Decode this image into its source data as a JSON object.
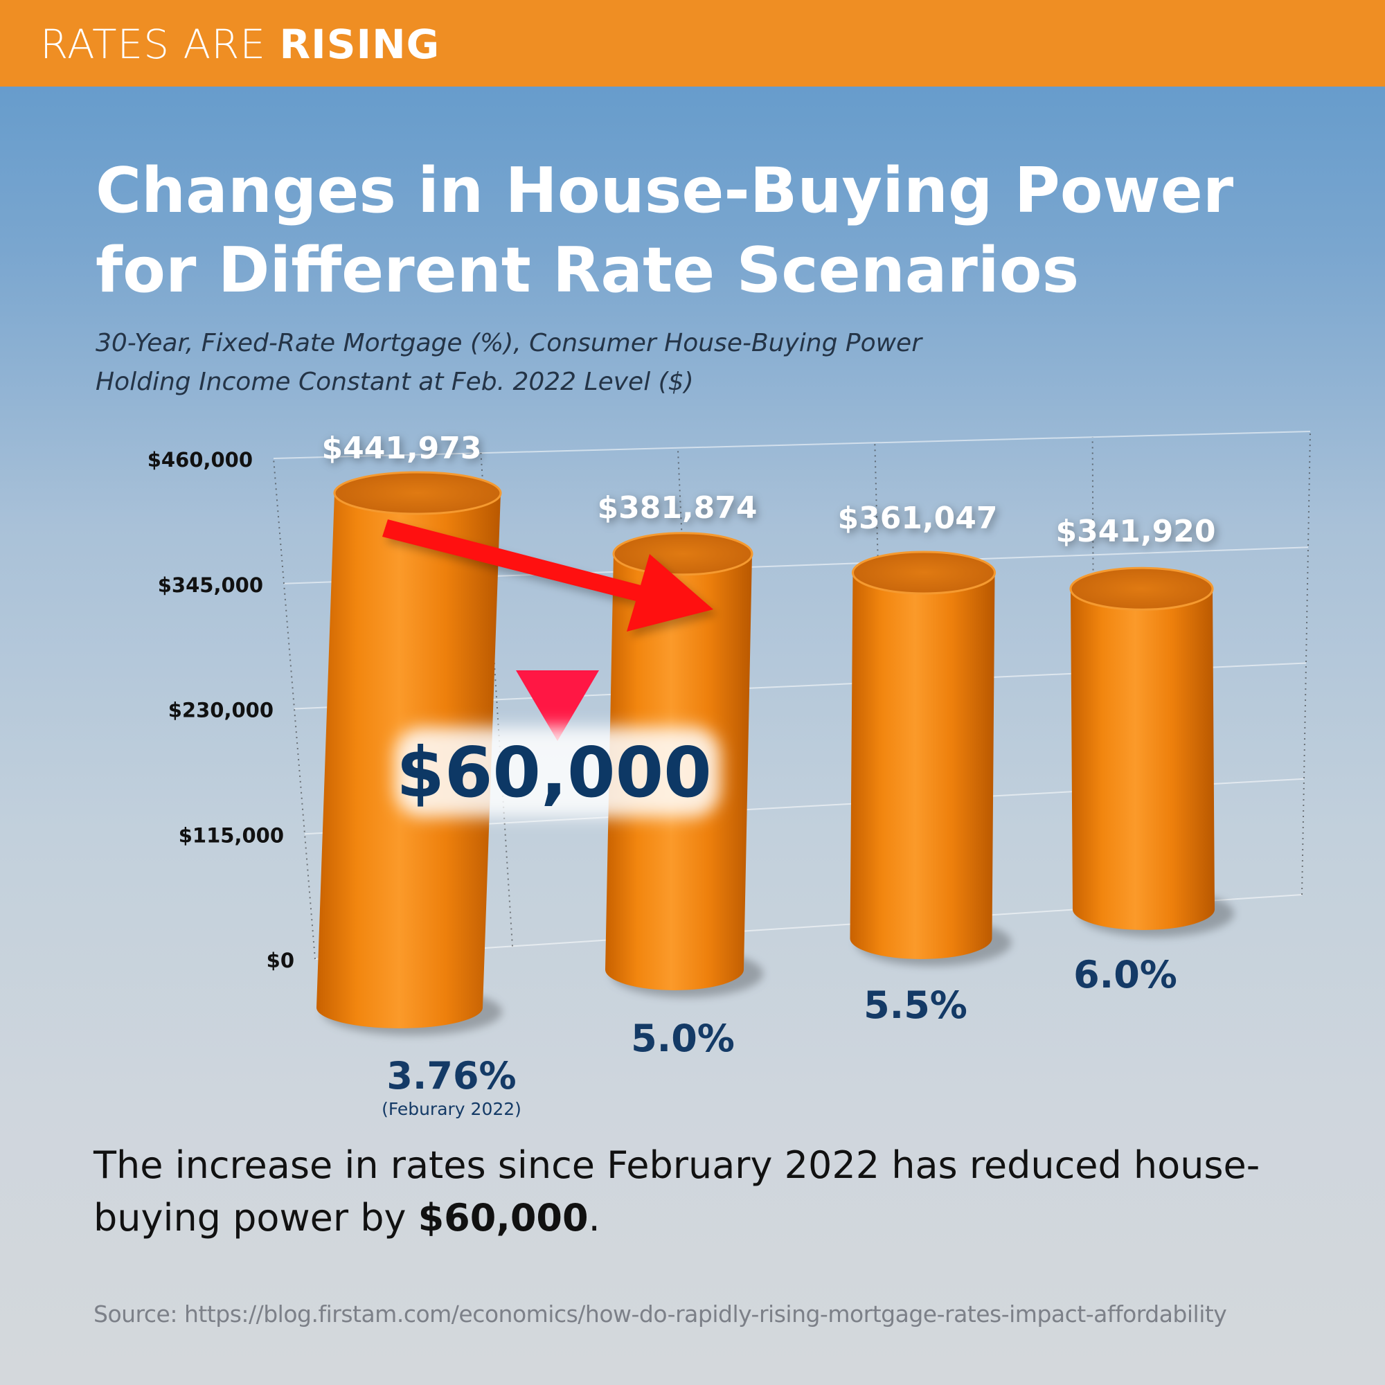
{
  "banner": {
    "prefix": "RATES ARE ",
    "emphasis": "RISING"
  },
  "title": "Changes in House-Buying Power for Different Rate Scenarios",
  "subtitle": {
    "line1": "30-Year, Fixed-Rate Mortgage (%), Consumer House-Buying Power",
    "line2": "Holding Income Constant at Feb. 2022 Level ($)"
  },
  "chart_data": {
    "type": "bar",
    "title": "Changes in House-Buying Power for Different Rate Scenarios",
    "xlabel": "30-Year, Fixed-Rate Mortgage (%)",
    "ylabel": "Consumer House-Buying Power ($)",
    "categories": [
      "3.76%",
      "5.0%",
      "5.5%",
      "6.0%"
    ],
    "category_notes": [
      "(Feburary 2022)",
      "",
      "",
      ""
    ],
    "values": [
      441973,
      381874,
      361047,
      341920
    ],
    "value_labels": [
      "$441,973",
      "$381,874",
      "$361,047",
      "$341,920"
    ],
    "yticks": [
      0,
      115000,
      230000,
      345000,
      460000
    ],
    "ytick_labels": [
      "$0",
      "$115,000",
      "$230,000",
      "$345,000",
      "$460,000"
    ],
    "ylim": [
      0,
      460000
    ],
    "grid": true,
    "annotation": {
      "text": "$60,000",
      "from_category": "3.76%",
      "to_category": "5.0%"
    },
    "colors": {
      "bar": "#f08a1c",
      "bar_dark": "#c65e00",
      "bar_top": "#d86f0a",
      "category_label": "#143a66",
      "arrow": "#ff1010",
      "marker": "#ff1744",
      "callout_text": "#0d3865"
    }
  },
  "statement": {
    "text": "The increase in rates since February 2022 has reduced house-buying power by ",
    "emphasis": "$60,000",
    "end": "."
  },
  "source": "Source: https://blog.firstam.com/economics/how-do-rapidly-rising-mortgage-rates-impact-affordability"
}
